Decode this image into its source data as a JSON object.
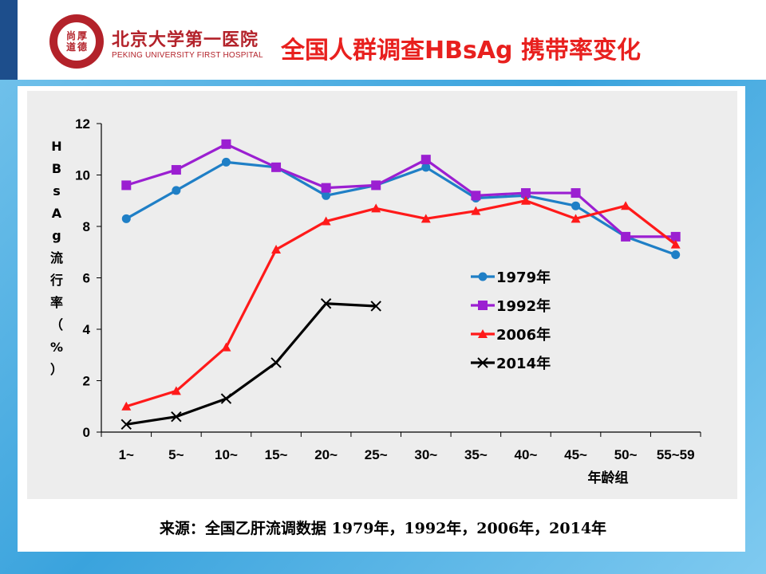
{
  "header": {
    "hospital_name_cn": "北京大学第一医院",
    "hospital_name_en": "PEKING UNIVERSITY FIRST HOSPITAL",
    "seal_chars": [
      "尚",
      "厚",
      "道",
      "德"
    ],
    "title": "全国人群调查HBsAg 携带率变化"
  },
  "chart_data": {
    "type": "line",
    "title": "",
    "xlabel": "年龄组",
    "ylabel": "HBsAg流行率（%）",
    "ylim": [
      0,
      12
    ],
    "yticks": [
      0,
      2,
      4,
      6,
      8,
      10,
      12
    ],
    "categories": [
      "1~",
      "5~",
      "10~",
      "15~",
      "20~",
      "25~",
      "30~",
      "35~",
      "40~",
      "45~",
      "50~",
      "55~59"
    ],
    "legend_position": "center-right",
    "grid": false,
    "series": [
      {
        "name": "1979年",
        "color": "#1f7fc6",
        "marker": "circle",
        "values": [
          8.3,
          9.4,
          10.5,
          10.3,
          9.2,
          9.6,
          10.3,
          9.1,
          9.2,
          8.8,
          7.6,
          6.9
        ]
      },
      {
        "name": "1992年",
        "color": "#9b1fd1",
        "marker": "square",
        "values": [
          9.6,
          10.2,
          11.2,
          10.3,
          9.5,
          9.6,
          10.6,
          9.2,
          9.3,
          9.3,
          7.6,
          7.6
        ]
      },
      {
        "name": "2006年",
        "color": "#ff1a1a",
        "marker": "triangle",
        "values": [
          1.0,
          1.6,
          3.3,
          7.1,
          8.2,
          8.7,
          8.3,
          8.6,
          9.0,
          8.3,
          8.8,
          7.3
        ]
      },
      {
        "name": "2014年",
        "color": "#000000",
        "marker": "x",
        "values": [
          0.3,
          0.6,
          1.3,
          2.7,
          5.0,
          4.9,
          null,
          null,
          null,
          null,
          null,
          null
        ]
      }
    ]
  },
  "source_note": "来源：全国乙肝流调数据 1979年，1992年，2006年，2014年"
}
